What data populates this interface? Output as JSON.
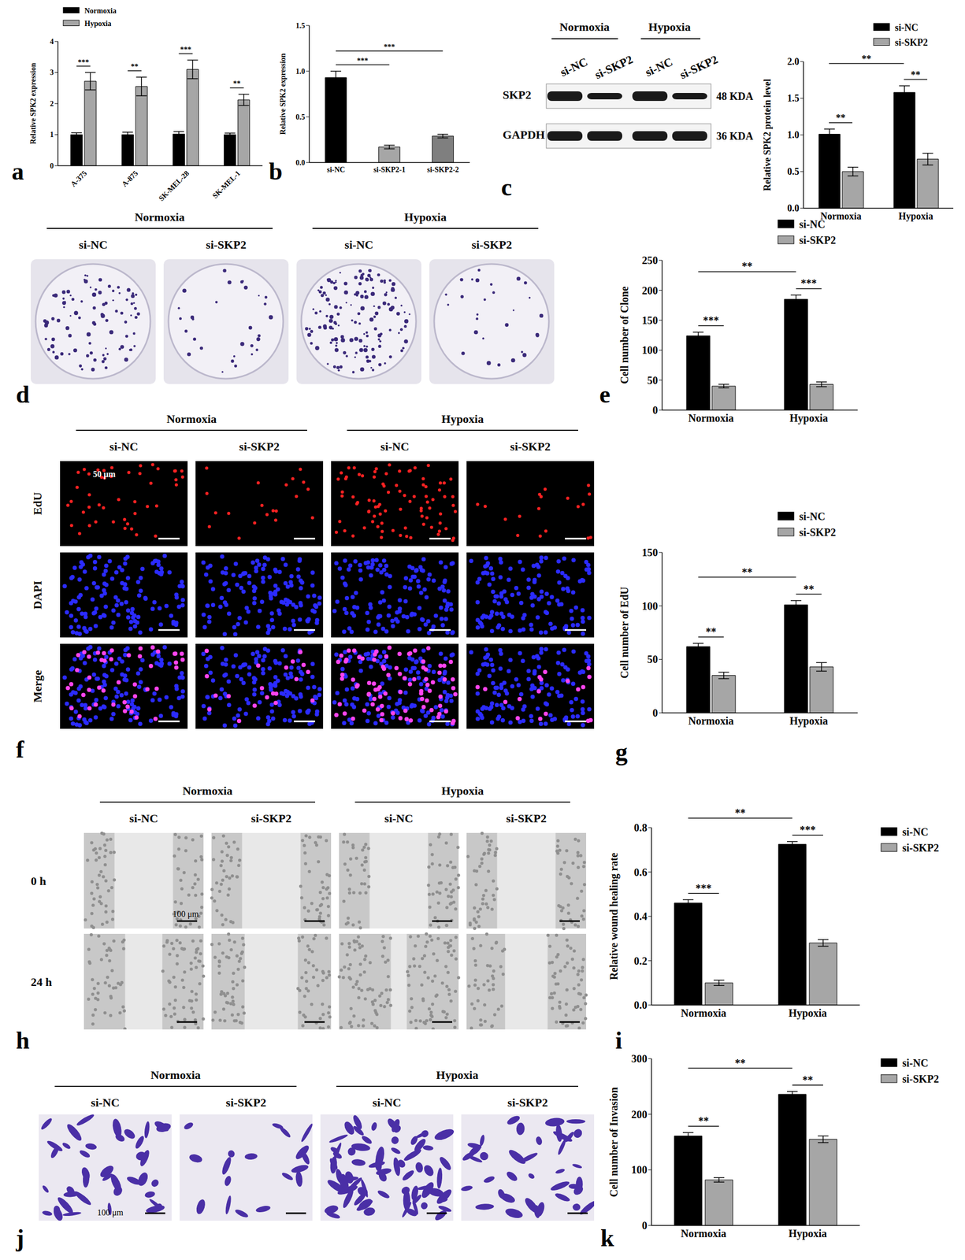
{
  "chart_data": [
    {
      "panel": "a",
      "type": "bar",
      "ylabel": "Relative SPK2 expression",
      "categories": [
        "A-375",
        "A-875",
        "SK-MEL-28",
        "SK-MEL-1"
      ],
      "series": [
        {
          "name": "Normoxia",
          "color": "#000000",
          "values": [
            1.0,
            1.0,
            1.02,
            1.0
          ],
          "errors": [
            0.06,
            0.08,
            0.08,
            0.05
          ]
        },
        {
          "name": "Hypoxia",
          "color": "#a6a6a6",
          "values": [
            2.72,
            2.55,
            3.1,
            2.12
          ],
          "errors": [
            0.28,
            0.3,
            0.3,
            0.18
          ]
        }
      ],
      "ylim": [
        0,
        4
      ],
      "yticks": [
        0,
        1,
        2,
        3,
        4
      ],
      "legend": "top-left",
      "significance": [
        {
          "label": "***",
          "from": {
            "category": "A-375",
            "series": "Normoxia"
          },
          "to": {
            "category": "A-375",
            "series": "Hypoxia"
          }
        },
        {
          "label": "**",
          "from": {
            "category": "A-875",
            "series": "Normoxia"
          },
          "to": {
            "category": "A-875",
            "series": "Hypoxia"
          }
        },
        {
          "label": "***",
          "from": {
            "category": "SK-MEL-28",
            "series": "Normoxia"
          },
          "to": {
            "category": "SK-MEL-28",
            "series": "Hypoxia"
          }
        },
        {
          "label": "**",
          "from": {
            "category": "SK-MEL-1",
            "series": "Normoxia"
          },
          "to": {
            "category": "SK-MEL-1",
            "series": "Hypoxia"
          }
        }
      ]
    },
    {
      "panel": "b",
      "type": "bar",
      "ylabel": "Relative SPK2 expression",
      "categories": [
        "si-NC",
        "si-SKP2-1",
        "si-SKP2-2"
      ],
      "values": [
        0.93,
        0.17,
        0.29
      ],
      "errors": [
        0.07,
        0.02,
        0.02
      ],
      "colors": [
        "#000000",
        "#a6a6a6",
        "#7f7f7f"
      ],
      "ylim": [
        0,
        1.5
      ],
      "yticks": [
        {
          "value": 0,
          "label": "0.0"
        },
        0.5,
        {
          "value": 1,
          "label": "1.0"
        },
        1.5
      ],
      "significance": [
        {
          "label": "***",
          "from": {
            "category": "si-NC"
          },
          "to": {
            "category": "si-SKP2-1"
          }
        },
        {
          "label": "***",
          "from": {
            "category": "si-NC"
          },
          "to": {
            "category": "si-SKP2-2"
          }
        }
      ]
    },
    {
      "panel": "c",
      "type": "bar",
      "ylabel": "Relative SPK2 protein level",
      "categories": [
        "Normoxia",
        "Hypoxia"
      ],
      "series": [
        {
          "name": "si-NC",
          "color": "#000000",
          "values": [
            1.01,
            1.58
          ],
          "errors": [
            0.07,
            0.09
          ]
        },
        {
          "name": "si-SKP2",
          "color": "#a6a6a6",
          "values": [
            0.5,
            0.67
          ],
          "errors": [
            0.06,
            0.08
          ]
        }
      ],
      "ylim": [
        0,
        2
      ],
      "yticks": [
        {
          "value": 0,
          "label": "0.0"
        },
        0.5,
        {
          "value": 1,
          "label": "1.0"
        },
        1.5,
        {
          "value": 2,
          "label": "2.0"
        }
      ],
      "legend": "top-right",
      "significance": [
        {
          "label": "**",
          "from": {
            "category": "Normoxia",
            "series": "si-NC"
          },
          "to": {
            "category": "Normoxia",
            "series": "si-SKP2"
          }
        },
        {
          "label": "**",
          "from": {
            "category": "Hypoxia",
            "series": "si-NC"
          },
          "to": {
            "category": "Hypoxia",
            "series": "si-SKP2"
          }
        },
        {
          "label": "**",
          "from": {
            "category": "Normoxia",
            "series": "si-NC"
          },
          "to": {
            "category": "Hypoxia",
            "series": "si-NC"
          }
        }
      ]
    },
    {
      "panel": "e",
      "type": "bar",
      "ylabel": "Cell number of Clone",
      "categories": [
        "Normoxia",
        "Hypoxia"
      ],
      "series": [
        {
          "name": "si-NC",
          "color": "#000000",
          "values": [
            124,
            185
          ],
          "errors": [
            6,
            7
          ]
        },
        {
          "name": "si-SKP2",
          "color": "#a6a6a6",
          "values": [
            40,
            43
          ],
          "errors": [
            3,
            4
          ]
        }
      ],
      "ylim": [
        0,
        250
      ],
      "yticks": [
        0,
        50,
        100,
        150,
        200,
        250
      ],
      "legend": "top-right",
      "significance": [
        {
          "label": "***",
          "from": {
            "category": "Normoxia",
            "series": "si-NC"
          },
          "to": {
            "category": "Normoxia",
            "series": "si-SKP2"
          }
        },
        {
          "label": "***",
          "from": {
            "category": "Hypoxia",
            "series": "si-NC"
          },
          "to": {
            "category": "Hypoxia",
            "series": "si-SKP2"
          }
        },
        {
          "label": "**",
          "from": {
            "category": "Normoxia",
            "series": "si-NC"
          },
          "to": {
            "category": "Hypoxia",
            "series": "si-NC"
          }
        }
      ]
    },
    {
      "panel": "g",
      "type": "bar",
      "ylabel": "Cell number of EdU",
      "categories": [
        "Normoxia",
        "Hypoxia"
      ],
      "series": [
        {
          "name": "si-NC",
          "color": "#000000",
          "values": [
            62,
            101
          ],
          "errors": [
            3,
            4
          ]
        },
        {
          "name": "si-SKP2",
          "color": "#a6a6a6",
          "values": [
            35,
            43
          ],
          "errors": [
            3,
            4
          ]
        }
      ],
      "ylim": [
        0,
        150
      ],
      "yticks": [
        0,
        50,
        100,
        150
      ],
      "legend": "top-right",
      "significance": [
        {
          "label": "**",
          "from": {
            "category": "Normoxia",
            "series": "si-NC"
          },
          "to": {
            "category": "Normoxia",
            "series": "si-SKP2"
          }
        },
        {
          "label": "**",
          "from": {
            "category": "Hypoxia",
            "series": "si-NC"
          },
          "to": {
            "category": "Hypoxia",
            "series": "si-SKP2"
          }
        },
        {
          "label": "**",
          "from": {
            "category": "Normoxia",
            "series": "si-NC"
          },
          "to": {
            "category": "Hypoxia",
            "series": "si-NC"
          }
        }
      ]
    },
    {
      "panel": "i",
      "type": "bar",
      "ylabel": "Relative wound healing rate",
      "categories": [
        "Normoxia",
        "Hypoxia"
      ],
      "series": [
        {
          "name": "si-NC",
          "color": "#000000",
          "values": [
            0.46,
            0.725
          ],
          "errors": [
            0.015,
            0.012
          ]
        },
        {
          "name": "si-SKP2",
          "color": "#a6a6a6",
          "values": [
            0.1,
            0.28
          ],
          "errors": [
            0.012,
            0.015
          ]
        }
      ],
      "ylim": [
        0,
        0.8
      ],
      "yticks": [
        {
          "value": 0,
          "label": "0.0"
        },
        0.2,
        0.4,
        0.6,
        0.8
      ],
      "legend": "right",
      "significance": [
        {
          "label": "***",
          "from": {
            "category": "Normoxia",
            "series": "si-NC"
          },
          "to": {
            "category": "Normoxia",
            "series": "si-SKP2"
          }
        },
        {
          "label": "***",
          "from": {
            "category": "Hypoxia",
            "series": "si-NC"
          },
          "to": {
            "category": "Hypoxia",
            "series": "si-SKP2"
          }
        },
        {
          "label": "**",
          "from": {
            "category": "Normoxia",
            "series": "si-NC"
          },
          "to": {
            "category": "Hypoxia",
            "series": "si-NC"
          }
        }
      ]
    },
    {
      "panel": "k",
      "type": "bar",
      "ylabel": "Cell number of Invasion",
      "categories": [
        "Normoxia",
        "Hypoxia"
      ],
      "series": [
        {
          "name": "si-NC",
          "color": "#000000",
          "values": [
            161,
            236
          ],
          "errors": [
            6,
            5
          ]
        },
        {
          "name": "si-SKP2",
          "color": "#a6a6a6",
          "values": [
            82,
            155
          ],
          "errors": [
            4,
            6
          ]
        }
      ],
      "ylim": [
        0,
        300
      ],
      "yticks": [
        0,
        100,
        200,
        300
      ],
      "legend": "right",
      "significance": [
        {
          "label": "**",
          "from": {
            "category": "Normoxia",
            "series": "si-NC"
          },
          "to": {
            "category": "Normoxia",
            "series": "si-SKP2"
          }
        },
        {
          "label": "**",
          "from": {
            "category": "Hypoxia",
            "series": "si-NC"
          },
          "to": {
            "category": "Hypoxia",
            "series": "si-SKP2"
          }
        },
        {
          "label": "**",
          "from": {
            "category": "Normoxia",
            "series": "si-NC"
          },
          "to": {
            "category": "Hypoxia",
            "series": "si-NC"
          }
        }
      ]
    }
  ],
  "image_panels": {
    "blot": {
      "panel": "c",
      "groups": [
        "Normoxia",
        "Hypoxia"
      ],
      "lanes": [
        "si-NC",
        "si-SKP2",
        "si-NC",
        "si-SKP2"
      ],
      "rows": [
        {
          "name": "SKP2",
          "size": "48 KDA"
        },
        {
          "name": "GAPDH",
          "size": "36 KDA"
        }
      ]
    },
    "colony": {
      "panel": "d",
      "groups": [
        "Normoxia",
        "Hypoxia"
      ],
      "columns": [
        "si-NC",
        "si-SKP2",
        "si-NC",
        "si-SKP2"
      ]
    },
    "edu": {
      "panel": "f",
      "groups": [
        "Normoxia",
        "Hypoxia"
      ],
      "columns": [
        "si-NC",
        "si-SKP2",
        "si-NC",
        "si-SKP2"
      ],
      "rows": [
        "EdU",
        "DAPI",
        "Merge"
      ],
      "scale_bar": "50 μm"
    },
    "wound": {
      "panel": "h",
      "groups": [
        "Normoxia",
        "Hypoxia"
      ],
      "columns": [
        "si-NC",
        "si-SKP2",
        "si-NC",
        "si-SKP2"
      ],
      "rows": [
        "0 h",
        "24 h"
      ],
      "scale_bar": "100 μm"
    },
    "transwell": {
      "panel": "j",
      "groups": [
        "Normoxia",
        "Hypoxia"
      ],
      "columns": [
        "si-NC",
        "si-SKP2",
        "si-NC",
        "si-SKP2"
      ],
      "scale_bar": "100 μm"
    }
  }
}
